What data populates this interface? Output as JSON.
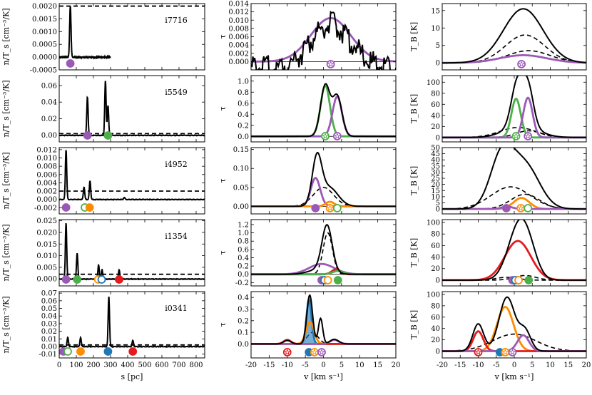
{
  "chart_data": {
    "type": "line",
    "layout": "5 rows x 3 columns of line plots",
    "colors": {
      "purple": "#9b59b6",
      "green": "#4daf4a",
      "orange": "#ff8c00",
      "blue": "#1f77b4",
      "red": "#e41a1c",
      "black": "#000000"
    },
    "columns": {
      "left": {
        "xlabel": "s [pc]",
        "xlim": [
          0,
          850
        ],
        "xticks": [
          0,
          100,
          200,
          300,
          400,
          500,
          600,
          700,
          800
        ]
      },
      "middle": {
        "xlabel": "v [km s⁻¹]",
        "ylabel": "τ",
        "xlim": [
          -20,
          20
        ],
        "xticks": [
          -20,
          -15,
          -10,
          -5,
          0,
          5,
          10,
          15,
          20
        ]
      },
      "right": {
        "xlabel": "v [km s⁻¹]",
        "ylabel": "T_B [K]",
        "xlim": [
          -20,
          20
        ],
        "xticks": [
          -20,
          -15,
          -10,
          -5,
          0,
          5,
          10,
          15,
          20
        ]
      }
    },
    "rows": [
      {
        "name": "i7716",
        "left": {
          "ylabel": "n/T_s [cm⁻³/K]",
          "ylim": [
            -0.0005,
            0.0021
          ],
          "yticks": [
            "-0.0005",
            "0.0000",
            "0.0005",
            "0.0010",
            "0.0015",
            "0.0020"
          ],
          "threshold": 0.002,
          "peaks": [
            {
              "s": 65,
              "h": 0.002
            }
          ],
          "markers": [
            {
              "s": 65,
              "color": "purple",
              "filled": true
            }
          ]
        },
        "middle": {
          "ylim": [
            -0.002,
            0.014
          ],
          "yticks": [
            "0.000",
            "0.002",
            "0.004",
            "0.006",
            "0.008",
            "0.010",
            "0.012",
            "0.014"
          ],
          "components": [
            {
              "amp": 0.0105,
              "center": 2,
              "width": 5.5,
              "color": "purple"
            }
          ],
          "markers": [
            {
              "v": 2,
              "color": "purple",
              "star": true
            }
          ]
        },
        "right": {
          "ylim": [
            -2,
            17
          ],
          "yticks": [
            "0",
            "5",
            "10",
            "15"
          ],
          "total": [
            {
              "amp": 15.5,
              "center": 2.5,
              "width": 5.5
            }
          ],
          "dashed": [
            {
              "amp": 8,
              "center": 3,
              "width": 5.5
            },
            {
              "amp": 3.5,
              "center": 4,
              "width": 6
            }
          ],
          "components": [
            {
              "amp": 2.2,
              "center": 2.5,
              "width": 6.5,
              "color": "purple"
            }
          ],
          "markers": [
            {
              "v": 2,
              "color": "purple",
              "star": true
            }
          ]
        }
      },
      {
        "name": "i5549",
        "left": {
          "ylabel": "n/T_s [cm⁻³/K]",
          "ylim": [
            -0.008,
            0.072
          ],
          "yticks": [
            "0.00",
            "0.02",
            "0.04",
            "0.06"
          ],
          "threshold": 0.002,
          "peaks": [
            {
              "s": 165,
              "h": 0.046
            },
            {
              "s": 270,
              "h": 0.066
            },
            {
              "s": 285,
              "h": 0.036
            }
          ],
          "markers": [
            {
              "s": 165,
              "color": "purple",
              "filled": true
            },
            {
              "s": 285,
              "color": "green",
              "filled": true
            }
          ]
        },
        "middle": {
          "ylim": [
            -0.1,
            1.1
          ],
          "yticks": [
            "0.0",
            "0.2",
            "0.4",
            "0.6",
            "0.8",
            "1.0"
          ],
          "components": [
            {
              "amp": 0.92,
              "center": 0.5,
              "width": 1.3,
              "color": "green"
            },
            {
              "amp": 0.72,
              "center": 3.8,
              "width": 1.3,
              "color": "purple"
            }
          ],
          "markers": [
            {
              "v": 0.5,
              "color": "green",
              "star": true
            },
            {
              "v": 3.8,
              "color": "purple",
              "star": true
            }
          ]
        },
        "right": {
          "ylim": [
            -8,
            112
          ],
          "yticks": [
            "0",
            "20",
            "40",
            "60",
            "80",
            "100"
          ],
          "total": [
            {
              "amp": 78,
              "center": 0.8,
              "width": 1.6
            },
            {
              "amp": 72,
              "center": 3.8,
              "width": 1.5
            },
            {
              "amp": 22,
              "center": 2,
              "width": 4.5
            }
          ],
          "dashed": [
            {
              "amp": 18,
              "center": 1,
              "width": 5
            },
            {
              "amp": 12,
              "center": 4,
              "width": 3.5
            }
          ],
          "components": [
            {
              "amp": 70,
              "center": 0.5,
              "width": 1.3,
              "color": "green"
            },
            {
              "amp": 72,
              "center": 3.8,
              "width": 1.3,
              "color": "purple"
            }
          ],
          "markers": [
            {
              "v": 0.5,
              "color": "green",
              "star": true
            },
            {
              "v": 3.8,
              "color": "purple",
              "star": true
            }
          ]
        }
      },
      {
        "name": "i4952",
        "left": {
          "ylabel": "n/T_s [cm⁻³/K]",
          "ylim": [
            -0.0035,
            0.0125
          ],
          "yticks": [
            "-0.002",
            "0.000",
            "0.002",
            "0.004",
            "0.006",
            "0.008",
            "0.010",
            "0.012"
          ],
          "threshold": 0.002,
          "peaks": [
            {
              "s": 40,
              "h": 0.012
            },
            {
              "s": 145,
              "h": 0.003
            },
            {
              "s": 180,
              "h": 0.0045
            },
            {
              "s": 380,
              "h": 0.0005
            }
          ],
          "markers": [
            {
              "s": 40,
              "color": "purple",
              "filled": true
            },
            {
              "s": 150,
              "color": "green",
              "filled": false
            },
            {
              "s": 178,
              "color": "orange",
              "filled": true
            }
          ]
        },
        "middle": {
          "ylim": [
            -0.02,
            0.155
          ],
          "yticks": [
            "0.00",
            "0.05",
            "0.10",
            "0.15"
          ],
          "total": [
            {
              "amp": 0.12,
              "center": -1.8,
              "width": 1.3
            },
            {
              "amp": 0.05,
              "center": 1.5,
              "width": 2.5
            }
          ],
          "dashed": [
            {
              "amp": 0.05,
              "center": 0,
              "width": 2.8
            }
          ],
          "components": [
            {
              "amp": 0.075,
              "center": -2.2,
              "width": 1.3,
              "color": "purple"
            },
            {
              "amp": 0.012,
              "center": 1.8,
              "width": 1.2,
              "color": "orange"
            }
          ],
          "markers": [
            {
              "v": -2.2,
              "color": "purple",
              "filled": true
            },
            {
              "v": 1.8,
              "color": "orange",
              "star": true
            },
            {
              "v": 3.8,
              "color": "green",
              "filled": false
            }
          ]
        },
        "right": {
          "ylim": [
            -4,
            50
          ],
          "yticks": [
            "0",
            "5",
            "10",
            "15",
            "20",
            "25",
            "30",
            "35",
            "40",
            "45",
            "50"
          ],
          "total": [
            {
              "amp": 42,
              "center": -3.5,
              "width": 3.2
            },
            {
              "amp": 35,
              "center": 3,
              "width": 4
            }
          ],
          "dashed": [
            {
              "amp": 18,
              "center": -1,
              "width": 5.5
            },
            {
              "amp": 12,
              "center": 3,
              "width": 4
            }
          ],
          "components": [
            {
              "amp": 9,
              "center": 2,
              "width": 2.2,
              "color": "orange"
            },
            {
              "amp": 2,
              "center": -2,
              "width": 1.5,
              "color": "purple"
            }
          ],
          "markers": [
            {
              "v": -2.2,
              "color": "purple",
              "filled": true
            },
            {
              "v": 1.8,
              "color": "orange",
              "star": true
            },
            {
              "v": 3.8,
              "color": "green",
              "filled": false
            }
          ]
        }
      },
      {
        "name": "i1354",
        "left": {
          "ylabel": "n/T_s [cm⁻³/K]",
          "ylim": [
            -0.003,
            0.0255
          ],
          "yticks": [
            "0.000",
            "0.005",
            "0.010",
            "0.015",
            "0.020",
            "0.025"
          ],
          "threshold": 0.002,
          "peaks": [
            {
              "s": 40,
              "h": 0.024
            },
            {
              "s": 105,
              "h": 0.011
            },
            {
              "s": 230,
              "h": 0.006
            },
            {
              "s": 250,
              "h": 0.004
            },
            {
              "s": 350,
              "h": 0.004
            }
          ],
          "markers": [
            {
              "s": 40,
              "color": "purple",
              "filled": true
            },
            {
              "s": 105,
              "color": "green",
              "filled": true
            },
            {
              "s": 228,
              "color": "orange",
              "filled": false
            },
            {
              "s": 248,
              "color": "blue",
              "filled": false
            },
            {
              "s": 350,
              "color": "red",
              "filled": true
            }
          ]
        },
        "middle": {
          "ylim": [
            -0.28,
            1.32
          ],
          "yticks": [
            "-0.2",
            "0.0",
            "0.2",
            "0.4",
            "0.6",
            "0.8",
            "1.0",
            "1.2"
          ],
          "total": [
            {
              "amp": 1.1,
              "center": 1,
              "width": 1.4
            },
            {
              "amp": 0.12,
              "center": -1,
              "width": 3
            }
          ],
          "dashed": [
            {
              "amp": 1.0,
              "center": 1.2,
              "width": 1.3
            }
          ],
          "components": [
            {
              "amp": 0.25,
              "center": -0.5,
              "width": 3.5,
              "color": "purple"
            },
            {
              "amp": 0.12,
              "center": 3.5,
              "width": 1.2,
              "color": "red"
            },
            {
              "amp": 0.08,
              "center": 4,
              "width": 1.5,
              "color": "green"
            }
          ],
          "markers": [
            {
              "v": -0.5,
              "color": "purple",
              "filled": true
            },
            {
              "v": 0.3,
              "color": "blue",
              "filled": false
            },
            {
              "v": 1.2,
              "color": "orange",
              "filled": false
            },
            {
              "v": 4,
              "color": "green",
              "filled": true
            }
          ]
        },
        "right": {
          "ylim": [
            -10,
            105
          ],
          "yticks": [
            "0",
            "20",
            "40",
            "60",
            "80",
            "100"
          ],
          "total": [
            {
              "amp": 88,
              "center": 1.2,
              "width": 3
            },
            {
              "amp": 30,
              "center": 4,
              "width": 2.5
            }
          ],
          "dashed": [
            {
              "amp": 8,
              "center": 3,
              "width": 3
            },
            {
              "amp": 5,
              "center": -2,
              "width": 3
            }
          ],
          "components": [
            {
              "amp": 68,
              "center": 1,
              "width": 3.6,
              "color": "red"
            }
          ],
          "markers": [
            {
              "v": -0.5,
              "color": "purple",
              "filled": true
            },
            {
              "v": 0.3,
              "color": "blue",
              "filled": false
            },
            {
              "v": 1.2,
              "color": "orange",
              "filled": false
            },
            {
              "v": 4,
              "color": "green",
              "filled": true
            }
          ]
        }
      },
      {
        "name": "i0341",
        "left": {
          "ylabel": "n/T_s [cm⁻³/K]",
          "ylim": [
            -0.015,
            0.072
          ],
          "yticks": [
            "-0.01",
            "0.00",
            "0.01",
            "0.02",
            "0.03",
            "0.04",
            "0.05",
            "0.06",
            "0.07"
          ],
          "threshold": 0.002,
          "peaks": [
            {
              "s": 50,
              "h": 0.012
            },
            {
              "s": 125,
              "h": 0.012
            },
            {
              "s": 290,
              "h": 0.066
            },
            {
              "s": 430,
              "h": 0.008
            }
          ],
          "markers": [
            {
              "s": 25,
              "color": "purple",
              "filled": true
            },
            {
              "s": 50,
              "color": "green",
              "filled": false
            },
            {
              "s": 125,
              "color": "orange",
              "filled": true
            },
            {
              "s": 285,
              "color": "blue",
              "filled": true
            },
            {
              "s": 430,
              "color": "red",
              "filled": true
            }
          ]
        },
        "middle": {
          "ylim": [
            -0.12,
            0.45
          ],
          "yticks": [
            "0.0",
            "0.1",
            "0.2",
            "0.3",
            "0.4"
          ],
          "total": [
            {
              "amp": 0.42,
              "center": -3.8,
              "width": 0.8
            },
            {
              "amp": 0.22,
              "center": -0.8,
              "width": 0.6
            },
            {
              "amp": 0.04,
              "center": 3,
              "width": 1.2
            },
            {
              "amp": 0.03,
              "center": -10,
              "width": 1
            }
          ],
          "dashed": [
            {
              "amp": 0.1,
              "center": -3,
              "width": 1.5
            }
          ],
          "components": [
            {
              "amp": 0.38,
              "center": -4,
              "width": 0.7,
              "color": "blue",
              "fill": true
            },
            {
              "amp": 0.19,
              "center": -3.7,
              "width": 1.1,
              "color": "orange"
            },
            {
              "amp": 0.035,
              "center": -10,
              "width": 1,
              "color": "red"
            },
            {
              "amp": 0.035,
              "center": 3,
              "width": 1.2,
              "color": "purple"
            }
          ],
          "markers": [
            {
              "v": -10,
              "color": "red",
              "star": true
            },
            {
              "v": -4,
              "color": "blue",
              "filled": true
            },
            {
              "v": -2.5,
              "color": "orange",
              "star": true
            },
            {
              "v": -0.5,
              "color": "purple",
              "star": true
            }
          ]
        },
        "right": {
          "ylim": [
            -12,
            105
          ],
          "yticks": [
            "0",
            "20",
            "40",
            "60",
            "80",
            "100"
          ],
          "total": [
            {
              "amp": 48,
              "center": -10,
              "width": 1.5
            },
            {
              "amp": 95,
              "center": -2,
              "width": 2.2
            },
            {
              "amp": 35,
              "center": 3,
              "width": 1.6
            }
          ],
          "dashed": [
            {
              "amp": 30,
              "center": 0,
              "width": 6
            }
          ],
          "components": [
            {
              "amp": 78,
              "center": -2.5,
              "width": 2.3,
              "color": "orange"
            },
            {
              "amp": 35,
              "center": -10,
              "width": 1.4,
              "color": "red"
            },
            {
              "amp": 28,
              "center": 2.5,
              "width": 1.6,
              "color": "purple"
            }
          ],
          "markers": [
            {
              "v": -10,
              "color": "red",
              "star": true
            },
            {
              "v": -4,
              "color": "blue",
              "filled": true
            },
            {
              "v": -2.5,
              "color": "orange",
              "star": true
            },
            {
              "v": -0.5,
              "color": "purple",
              "star": true
            }
          ]
        }
      }
    ]
  }
}
